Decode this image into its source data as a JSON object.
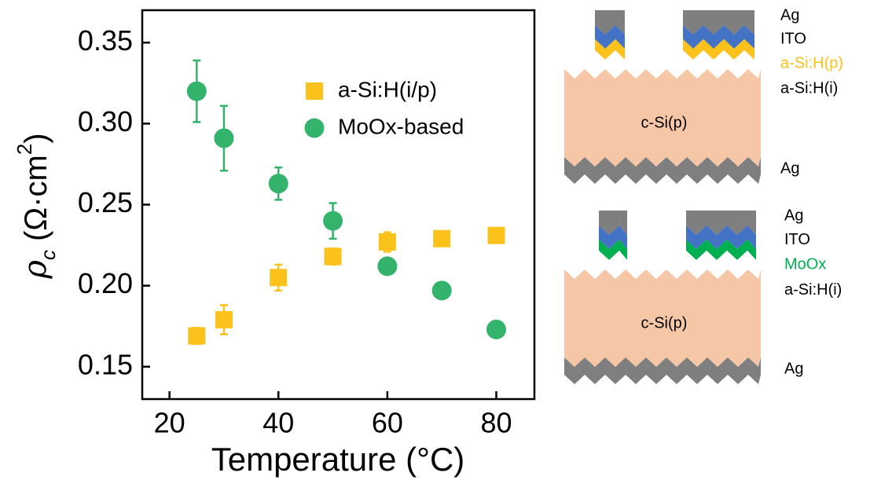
{
  "chart_data": {
    "type": "scatter",
    "x_label": "Temperature (°C)",
    "y_label": [
      "ρ",
      "c",
      " (Ω·cm",
      "2",
      ")"
    ],
    "x": [
      25,
      30,
      40,
      50,
      60,
      70,
      80
    ],
    "series": [
      {
        "name": "a-Si:H(i/p)",
        "color": "#fbc21b",
        "marker": "square",
        "values": [
          0.169,
          0.179,
          0.205,
          0.218,
          0.227,
          0.229,
          0.231
        ],
        "errors": [
          0.005,
          0.009,
          0.008,
          0.005,
          0.006,
          0.003,
          0.002
        ]
      },
      {
        "name": "MoOx-based",
        "color": "#33b36b",
        "marker": "circle",
        "values": [
          0.32,
          0.291,
          0.263,
          0.24,
          0.212,
          0.197,
          0.173
        ],
        "errors": [
          0.019,
          0.02,
          0.01,
          0.011,
          0.002,
          0.002,
          0.002
        ]
      }
    ],
    "xlim": [
      15,
      87
    ],
    "ylim": [
      0.13,
      0.37
    ],
    "xticks": [
      20,
      40,
      60,
      80
    ],
    "yticks": [
      0.15,
      {
        "value": 0.2,
        "label": "0.20"
      },
      0.25,
      {
        "value": 0.3,
        "label": "0.30"
      },
      0.35
    ]
  },
  "diagrams": [
    {
      "layers": [
        "Ag",
        "ITO",
        "a-Si:H(p)",
        "a-Si:H(i)"
      ],
      "substrate": "c-Si(p)",
      "bottom": "Ag"
    },
    {
      "layers": [
        "Ag",
        "ITO",
        "MoOx",
        "a-Si:H(i)"
      ],
      "substrate": "c-Si(p)",
      "bottom": "Ag"
    }
  ]
}
